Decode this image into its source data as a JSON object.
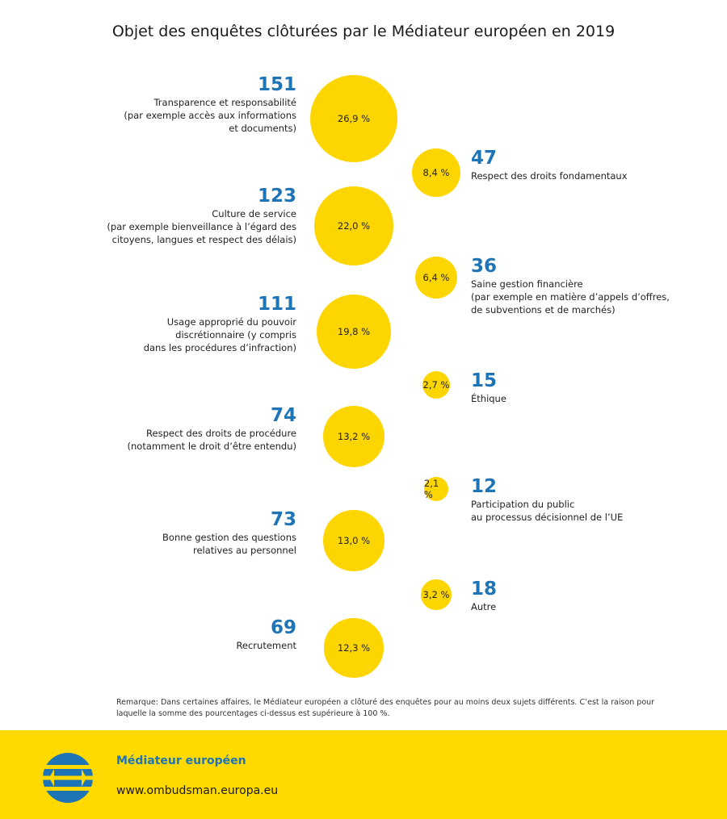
{
  "title": "Objet des enquêtes clôturées par le Médiateur européen en 2019",
  "colors": {
    "bubble": "#fdd500",
    "count": "#1e74b5",
    "footer": "#ffd900"
  },
  "chart_data": {
    "type": "bubble",
    "title": "Objet des enquêtes clôturées par le Médiateur européen en 2019",
    "items": [
      {
        "count": "151",
        "percent": "26,9 %",
        "value": 26.9,
        "label": "Transparence et responsabilité\n(par exemple accès aux informations\net documents)"
      },
      {
        "count": "47",
        "percent": "8,4 %",
        "value": 8.4,
        "label": "Respect des droits fondamentaux"
      },
      {
        "count": "123",
        "percent": "22,0 %",
        "value": 22.0,
        "label": "Culture de service\n(par exemple bienveillance à l’égard des\ncitoyens, langues et respect des délais)"
      },
      {
        "count": "36",
        "percent": "6,4 %",
        "value": 6.4,
        "label": "Saine gestion financière\n(par exemple en matière d’appels d’offres,\nde subventions et de marchés)"
      },
      {
        "count": "111",
        "percent": "19,8 %",
        "value": 19.8,
        "label": "Usage approprié du pouvoir\ndiscrétionnaire (y compris\ndans les procédures d’infraction)"
      },
      {
        "count": "15",
        "percent": "2,7 %",
        "value": 2.7,
        "label": "Éthique"
      },
      {
        "count": "74",
        "percent": "13,2 %",
        "value": 13.2,
        "label": "Respect des droits de procédure\n(notamment le droit d’être entendu)"
      },
      {
        "count": "12",
        "percent": "2,1 %",
        "value": 2.1,
        "label": "Participation du public\nau processus décisionnel de l’UE"
      },
      {
        "count": "73",
        "percent": "13,0 %",
        "value": 13.0,
        "label": "Bonne gestion des questions\nrelatives au personnel"
      },
      {
        "count": "18",
        "percent": "3,2 %",
        "value": 3.2,
        "label": "Autre"
      },
      {
        "count": "69",
        "percent": "12,3 %",
        "value": 12.3,
        "label": "Recrutement"
      }
    ]
  },
  "note": "Remarque: Dans certaines affaires, le Médiateur européen a clôturé des enquêtes pour au moins deux sujets différents. C’est la raison pour laquelle la somme des pourcentages ci-dessus est supérieure à 100 %.",
  "footer": {
    "name": "Médiateur européen",
    "url": "www.ombudsman.europa.eu",
    "logo_icon": "european-ombudsman-logo-icon"
  }
}
